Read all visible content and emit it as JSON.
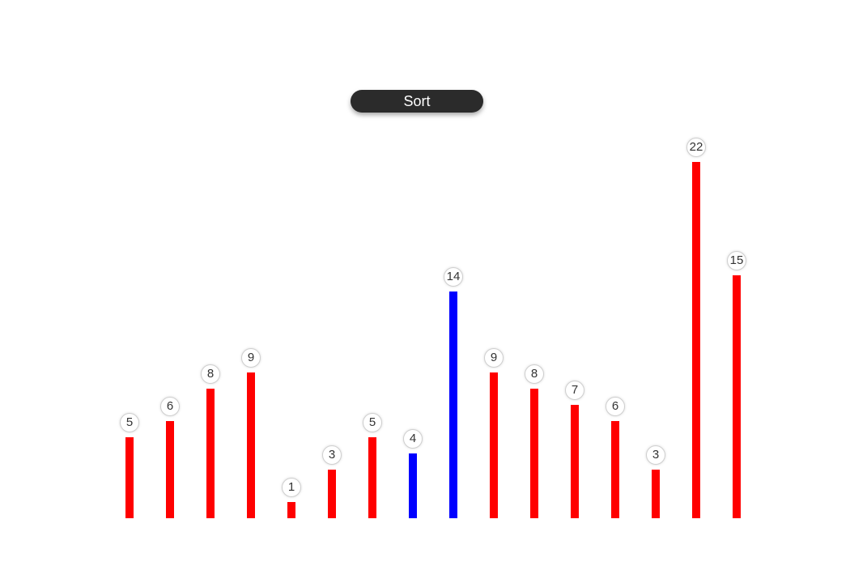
{
  "toolbar": {
    "sort_label": "Sort"
  },
  "colors": {
    "default_bar": "#ff0000",
    "highlight_bar": "#0000ff",
    "button_bg": "#2b2b2b",
    "button_text": "#ffffff"
  },
  "chart_data": {
    "type": "bar",
    "values": [
      5,
      6,
      8,
      9,
      1,
      3,
      5,
      4,
      14,
      9,
      8,
      7,
      6,
      3,
      22,
      15
    ],
    "highlighted_indices": [
      7,
      8
    ],
    "title": "",
    "xlabel": "",
    "ylabel": "",
    "grid": false
  }
}
